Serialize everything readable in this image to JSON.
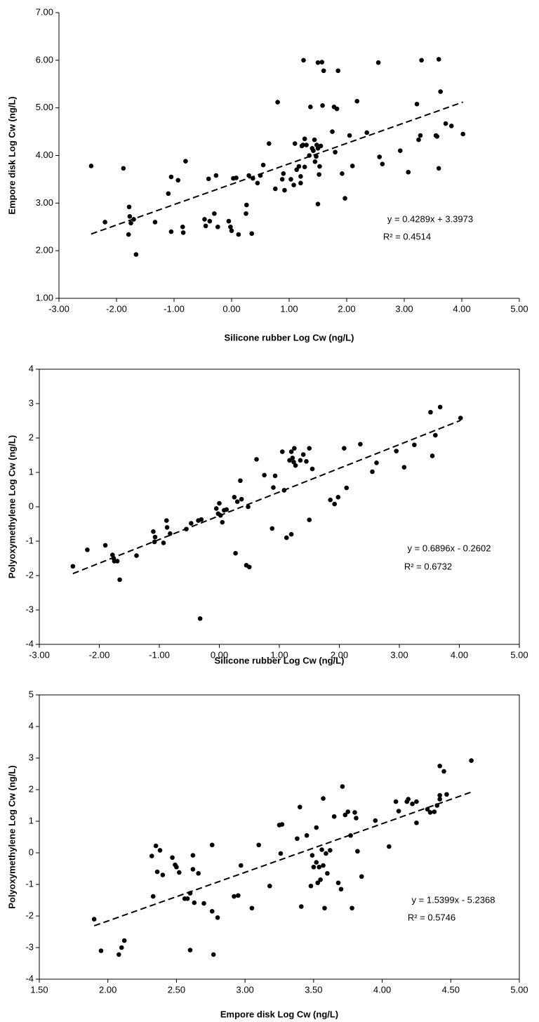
{
  "chart_data": [
    {
      "type": "scatter",
      "x_label": "Silicone rubber Log Cw (ng/L)",
      "y_label": "Empore disk Log Cw (ng/L)",
      "color": "#000000",
      "box": false,
      "xlim": [
        -3,
        5
      ],
      "ylim": [
        1,
        7
      ],
      "xticks": [
        {
          "value": -3,
          "label": "-3.00"
        },
        {
          "value": -2,
          "label": "-2.00"
        },
        {
          "value": -1,
          "label": "-1.00"
        },
        {
          "value": 0,
          "label": "0.00"
        },
        {
          "value": 1,
          "label": "1.00"
        },
        {
          "value": 2,
          "label": "2.00"
        },
        {
          "value": 3,
          "label": "3.00"
        },
        {
          "value": 4,
          "label": "4.00"
        },
        {
          "value": 5,
          "label": "5.00"
        }
      ],
      "yticks": [
        {
          "value": 1,
          "label": "1.00"
        },
        {
          "value": 2,
          "label": "2.00"
        },
        {
          "value": 3,
          "label": "3.00"
        },
        {
          "value": 4,
          "label": "4.00"
        },
        {
          "value": 5,
          "label": "5.00"
        },
        {
          "value": 6,
          "label": "6.00"
        },
        {
          "value": 7,
          "label": "7.00"
        }
      ],
      "trendline": {
        "slope": 0.4289,
        "intercept": 3.3973
      },
      "annotations": [
        "y = 0.4289x + 3.3973",
        "R² = 0.4514"
      ],
      "x": [
        -2.44,
        -2.2,
        -1.88,
        -1.78,
        -1.79,
        -1.77,
        -1.75,
        -1.7,
        -1.66,
        -1.33,
        -1.1,
        -1.05,
        -1.05,
        -0.93,
        -0.85,
        -0.84,
        -0.8,
        -0.47,
        -0.45,
        -0.4,
        -0.38,
        -0.3,
        -0.27,
        -0.24,
        -0.05,
        -0.02,
        0,
        0.03,
        0.08,
        0.12,
        0.25,
        0.26,
        0.3,
        0.35,
        0.37,
        0.45,
        0.5,
        0.55,
        0.65,
        0.76,
        0.8,
        0.88,
        0.9,
        0.92,
        1.03,
        1.08,
        1.1,
        1.13,
        1.17,
        1.2,
        1.2,
        1.22,
        1.24,
        1.25,
        1.27,
        1.27,
        1.3,
        1.35,
        1.37,
        1.4,
        1.42,
        1.44,
        1.45,
        1.47,
        1.48,
        1.5,
        1.5,
        1.5,
        1.52,
        1.53,
        1.55,
        1.57,
        1.58,
        1.6,
        1.75,
        1.78,
        1.8,
        1.83,
        1.85,
        1.92,
        1.97,
        2.05,
        2.1,
        2.18,
        2.35,
        2.55,
        2.57,
        2.62,
        2.93,
        3.07,
        3.22,
        3.25,
        3.28,
        3.3,
        3.55,
        3.57,
        3.6,
        3.6,
        3.63,
        3.72,
        3.82,
        4.02
      ],
      "y": [
        3.78,
        2.6,
        3.73,
        2.92,
        2.34,
        2.72,
        2.58,
        2.66,
        1.92,
        2.6,
        3.2,
        3.55,
        2.4,
        3.48,
        2.5,
        2.38,
        3.88,
        2.66,
        2.52,
        3.51,
        2.62,
        2.78,
        3.58,
        2.5,
        2.62,
        2.5,
        2.42,
        3.52,
        3.53,
        2.34,
        2.78,
        2.96,
        3.58,
        2.36,
        3.52,
        3.42,
        3.58,
        3.8,
        4.25,
        3.3,
        5.12,
        3.5,
        3.62,
        3.27,
        3.5,
        3.38,
        4.25,
        3.7,
        3.77,
        3.56,
        3.42,
        4.2,
        4.22,
        6.0,
        4.35,
        3.76,
        4.22,
        4.0,
        5.02,
        4.15,
        4.1,
        4.33,
        3.87,
        3.98,
        4.22,
        5.95,
        2.98,
        4.15,
        3.6,
        3.77,
        4.2,
        5.96,
        5.05,
        5.78,
        4.5,
        5.02,
        4.07,
        4.98,
        5.78,
        3.62,
        3.1,
        4.42,
        3.78,
        5.14,
        4.48,
        5.95,
        3.97,
        3.82,
        4.1,
        3.65,
        5.08,
        4.33,
        4.42,
        6.0,
        4.42,
        4.4,
        3.73,
        6.02,
        5.34,
        4.67,
        4.62,
        4.45
      ]
    },
    {
      "type": "scatter",
      "x_label": "Silicone rubber Log Cw (ng/L)",
      "y_label": "Polyoxymethylene Log Cw (ng/L)",
      "color": "#000000",
      "box": true,
      "xlim": [
        -3,
        5
      ],
      "ylim": [
        -4,
        4
      ],
      "xticks": [
        {
          "value": -3,
          "label": "-3.00"
        },
        {
          "value": -2,
          "label": "-2.00"
        },
        {
          "value": -1,
          "label": "-1.00"
        },
        {
          "value": 0,
          "label": "0.00"
        },
        {
          "value": 1,
          "label": "1.00"
        },
        {
          "value": 2,
          "label": "2.00"
        },
        {
          "value": 3,
          "label": "3.00"
        },
        {
          "value": 4,
          "label": "4.00"
        },
        {
          "value": 5,
          "label": "5.00"
        }
      ],
      "yticks": [
        -4,
        -3,
        -2,
        -1,
        0,
        1,
        2,
        3,
        4
      ],
      "trendline": {
        "slope": 0.6896,
        "intercept": -0.2602
      },
      "annotations": [
        "y = 0.6896x - 0.2602",
        "R² = 0.6732"
      ],
      "x": [
        -2.44,
        -2.2,
        -1.9,
        -1.78,
        -1.75,
        -1.76,
        -1.7,
        -1.66,
        -1.38,
        -1.1,
        -1.08,
        -1.07,
        -0.93,
        -0.88,
        -0.87,
        -0.82,
        -0.55,
        -0.47,
        -0.35,
        -0.32,
        -0.3,
        -0.05,
        -0.02,
        0,
        0.02,
        0.05,
        0.08,
        0.12,
        0.25,
        0.27,
        0.3,
        0.35,
        0.37,
        0.45,
        0.48,
        0.5,
        0.62,
        0.75,
        0.88,
        0.9,
        0.93,
        1.05,
        1.08,
        1.12,
        1.17,
        1.2,
        1.2,
        1.22,
        1.24,
        1.25,
        1.27,
        1.35,
        1.4,
        1.45,
        1.5,
        1.5,
        1.55,
        1.85,
        1.92,
        1.98,
        2.08,
        2.12,
        2.35,
        2.55,
        2.62,
        2.95,
        3.08,
        3.25,
        3.52,
        3.55,
        3.6,
        3.68,
        4.02
      ],
      "y": [
        -1.73,
        -1.25,
        -1.12,
        -1.4,
        -1.58,
        -1.5,
        -1.58,
        -2.12,
        -1.42,
        -0.72,
        -1.02,
        -0.88,
        -1.05,
        -0.4,
        -0.6,
        -0.78,
        -0.65,
        -0.48,
        -0.4,
        -3.25,
        -0.37,
        -0.05,
        -0.2,
        0.1,
        -0.25,
        -0.45,
        -0.1,
        -0.08,
        0.28,
        -1.35,
        0.15,
        0.76,
        0.22,
        -1.7,
        0,
        -1.75,
        1.38,
        0.92,
        -0.63,
        0.56,
        0.9,
        1.6,
        0.48,
        -0.9,
        1.35,
        -0.8,
        1.6,
        1.42,
        1.3,
        1.7,
        1.2,
        1.35,
        1.52,
        1.32,
        1.7,
        -0.38,
        1.1,
        0.2,
        0.08,
        0.28,
        1.7,
        0.55,
        1.82,
        1.02,
        1.28,
        1.62,
        1.15,
        1.8,
        2.75,
        1.48,
        2.08,
        2.9,
        2.58
      ]
    },
    {
      "type": "scatter",
      "x_label": "Empore disk Log Cw (ng/L)",
      "y_label": "Polyoxymethylene Log Cw (ng/L)",
      "color": "#000000",
      "box": true,
      "xlim": [
        1.5,
        5
      ],
      "ylim": [
        -4,
        5
      ],
      "xticks": [
        {
          "value": 1.5,
          "label": "1.50"
        },
        {
          "value": 2,
          "label": "2.00"
        },
        {
          "value": 2.5,
          "label": "2.50"
        },
        {
          "value": 3,
          "label": "3.00"
        },
        {
          "value": 3.5,
          "label": "3.50"
        },
        {
          "value": 4,
          "label": "4.00"
        },
        {
          "value": 4.5,
          "label": "4.50"
        },
        {
          "value": 5,
          "label": "5.00"
        }
      ],
      "yticks": [
        -4,
        -3,
        -2,
        -1,
        0,
        1,
        2,
        3,
        4,
        5
      ],
      "trendline": {
        "slope": 1.5399,
        "intercept": -5.2368
      },
      "annotations": [
        "y = 1.5399x - 5.2368",
        "R² = 0.5746"
      ],
      "x": [
        1.9,
        1.95,
        2.08,
        2.1,
        2.12,
        2.32,
        2.33,
        2.35,
        2.36,
        2.38,
        2.4,
        2.47,
        2.49,
        2.5,
        2.52,
        2.56,
        2.58,
        2.6,
        2.6,
        2.62,
        2.62,
        2.63,
        2.66,
        2.7,
        2.76,
        2.76,
        2.77,
        2.8,
        2.92,
        2.95,
        2.97,
        3.05,
        3.1,
        3.18,
        3.25,
        3.26,
        3.27,
        3.38,
        3.4,
        3.41,
        3.45,
        3.48,
        3.49,
        3.5,
        3.52,
        3.52,
        3.53,
        3.54,
        3.55,
        3.56,
        3.57,
        3.57,
        3.58,
        3.59,
        3.6,
        3.62,
        3.65,
        3.68,
        3.7,
        3.71,
        3.73,
        3.75,
        3.77,
        3.78,
        3.8,
        3.81,
        3.82,
        3.85,
        3.95,
        4.05,
        4.1,
        4.12,
        4.18,
        4.19,
        4.22,
        4.25,
        4.25,
        4.33,
        4.35,
        4.38,
        4.4,
        4.42,
        4.42,
        4.42,
        4.45,
        4.47,
        4.65
      ],
      "y": [
        -2.1,
        -3.1,
        -3.22,
        -3.0,
        -2.78,
        -0.1,
        -1.38,
        0.22,
        -0.6,
        0.08,
        -0.7,
        -0.15,
        -0.38,
        -0.45,
        -0.62,
        -1.45,
        -1.45,
        -1.28,
        -3.08,
        -0.08,
        -0.52,
        -1.58,
        -0.65,
        -1.6,
        0.25,
        -1.85,
        -3.22,
        -2.05,
        -1.38,
        -1.35,
        -0.4,
        -1.75,
        0.25,
        -1.05,
        0.88,
        -0.02,
        0.9,
        0.45,
        1.45,
        -1.7,
        0.55,
        -1.05,
        -0.08,
        -0.45,
        0.8,
        -0.3,
        -0.95,
        -0.45,
        -0.85,
        0.1,
        1.72,
        -0.4,
        -1.75,
        -0.02,
        -0.65,
        0.08,
        1.15,
        -0.95,
        -1.15,
        2.1,
        1.2,
        1.3,
        0.55,
        -1.75,
        1.28,
        1.1,
        0.05,
        -0.75,
        1.02,
        0.2,
        1.62,
        1.32,
        1.62,
        1.7,
        1.55,
        1.62,
        0.95,
        1.38,
        1.28,
        1.3,
        1.5,
        1.7,
        1.82,
        2.75,
        2.58,
        1.85,
        2.92
      ]
    }
  ]
}
